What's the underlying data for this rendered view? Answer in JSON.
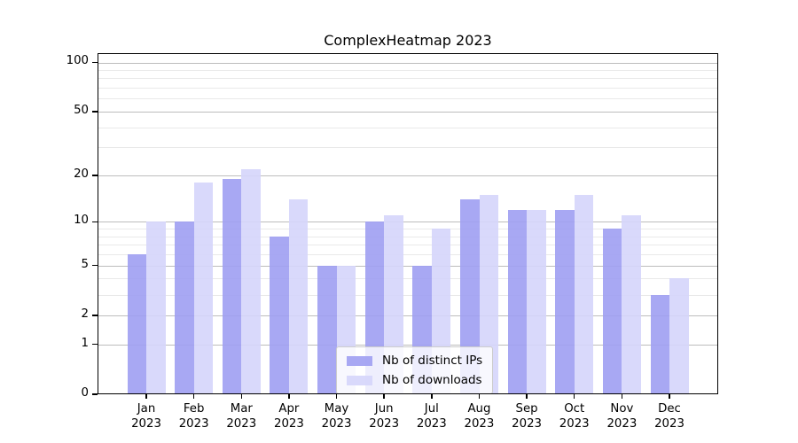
{
  "chart_data": {
    "type": "bar",
    "title": "ComplexHeatmap 2023",
    "categories": [
      "Jan 2023",
      "Feb 2023",
      "Mar 2023",
      "Apr 2023",
      "May 2023",
      "Jun 2023",
      "Jul 2023",
      "Aug 2023",
      "Sep 2023",
      "Oct 2023",
      "Nov 2023",
      "Dec 2023"
    ],
    "series": [
      {
        "name": "Nb of distinct IPs",
        "color": "#9f9ff2",
        "values": [
          6,
          10,
          19,
          8,
          5,
          10,
          5,
          14,
          12,
          12,
          9,
          3
        ]
      },
      {
        "name": "Nb of downloads",
        "color": "#d5d5fb",
        "values": [
          10,
          18,
          22,
          14,
          5,
          11,
          9,
          15,
          12,
          15,
          11,
          4
        ]
      }
    ],
    "yscale": "log1p",
    "ylim": [
      0,
      115
    ],
    "y_ticks_major": [
      0,
      1,
      2,
      5,
      10,
      20,
      50,
      100
    ],
    "y_ticks_minor": [
      3,
      4,
      6,
      7,
      8,
      9,
      30,
      40,
      60,
      70,
      80,
      90
    ],
    "grid": true,
    "legend_position": "lower-center",
    "colors": {
      "grid_major": "#bdbdbd",
      "grid_minor": "#e9e9e9",
      "spine": "#000000",
      "background": "#ffffff"
    }
  }
}
